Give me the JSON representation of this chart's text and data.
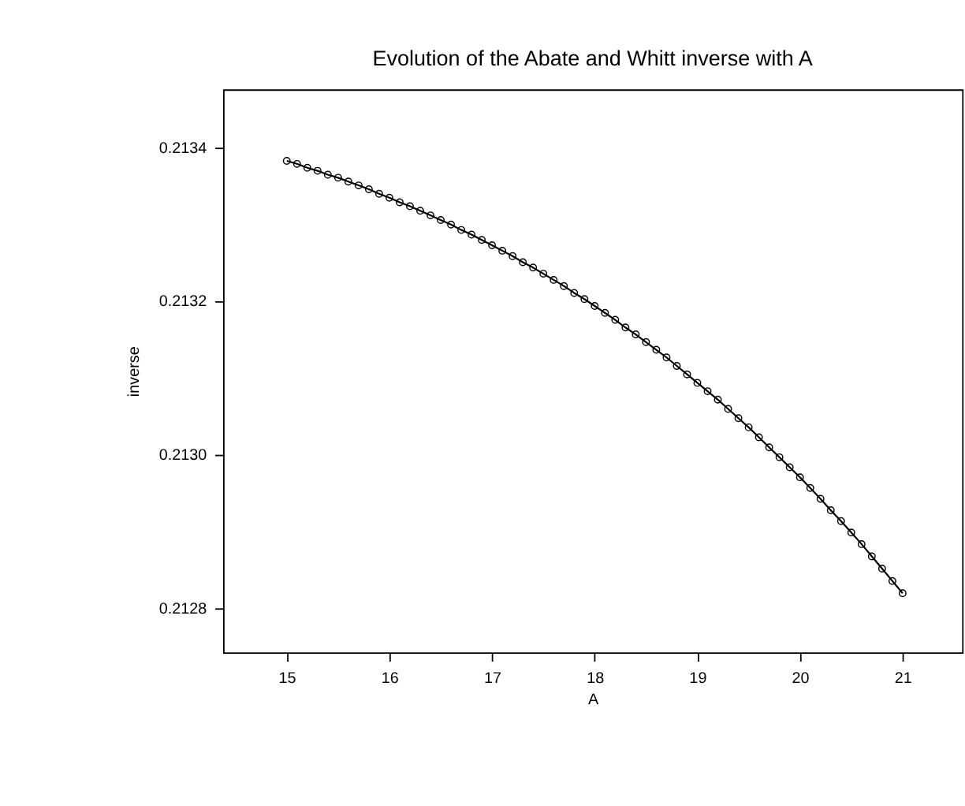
{
  "chart_data": {
    "type": "line",
    "title": "Evolution of the Abate and Whitt inverse with A",
    "xlabel": "A",
    "ylabel": "inverse",
    "x": [
      15.0,
      15.1,
      15.2,
      15.3,
      15.4,
      15.5,
      15.6,
      15.7,
      15.8,
      15.9,
      16.0,
      16.1,
      16.2,
      16.3,
      16.4,
      16.5,
      16.6,
      16.7,
      16.8,
      16.9,
      17.0,
      17.1,
      17.2,
      17.3,
      17.4,
      17.5,
      17.6,
      17.7,
      17.8,
      17.9,
      18.0,
      18.1,
      18.2,
      18.3,
      18.4,
      18.5,
      18.6,
      18.7,
      18.8,
      18.9,
      19.0,
      19.1,
      19.2,
      19.3,
      19.4,
      19.5,
      19.6,
      19.7,
      19.8,
      19.9,
      20.0,
      20.1,
      20.2,
      20.3,
      20.4,
      20.5,
      20.6,
      20.7,
      20.8,
      20.9,
      21.0
    ],
    "series": [
      {
        "color": "#000000",
        "values": [
          0.213383,
          0.213379,
          0.213374,
          0.21337,
          0.213365,
          0.213361,
          0.213356,
          0.213351,
          0.213346,
          0.21334,
          0.213335,
          0.213329,
          0.213324,
          0.213318,
          0.213312,
          0.213306,
          0.2133,
          0.213293,
          0.213287,
          0.21328,
          0.213273,
          0.213266,
          0.213259,
          0.213251,
          0.213244,
          0.213236,
          0.213228,
          0.21322,
          0.213211,
          0.213203,
          0.213194,
          0.213185,
          0.213176,
          0.213166,
          0.213157,
          0.213147,
          0.213137,
          0.213127,
          0.213116,
          0.213105,
          0.213094,
          0.213083,
          0.213072,
          0.21306,
          0.213048,
          0.213036,
          0.213023,
          0.21301,
          0.212997,
          0.212984,
          0.212971,
          0.212957,
          0.212943,
          0.212928,
          0.212914,
          0.212899,
          0.212884,
          0.212868,
          0.212852,
          0.212836,
          0.21282
        ]
      }
    ],
    "xlim": [
      14.38,
      21.58
    ],
    "ylim": [
      0.212743,
      0.213476
    ],
    "xticks": [
      15,
      16,
      17,
      18,
      19,
      20,
      21
    ],
    "yticks": [
      {
        "value": 0.2128,
        "label": "0.2128"
      },
      {
        "value": 0.213,
        "label": "0.2130"
      },
      {
        "value": 0.2132,
        "label": "0.2132"
      },
      {
        "value": 0.2134,
        "label": "0.2134"
      }
    ],
    "marker": "circle",
    "line_style": "solid",
    "grid": false
  }
}
